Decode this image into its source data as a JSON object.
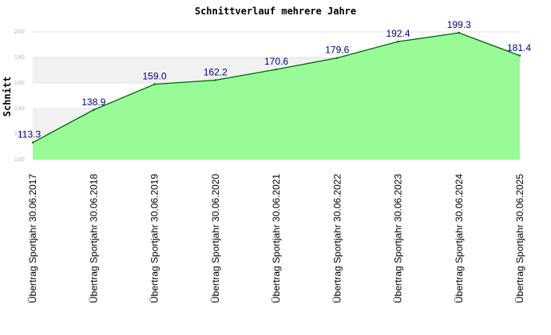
{
  "chart_data": {
    "type": "area",
    "title": "Schnittverlauf mehrere Jahre",
    "xlabel": "",
    "ylabel": "Schnitt",
    "categories": [
      "Übertrag Sportjahr 30.06.2017",
      "Übertrag Sportjahr 30.06.2018",
      "Übertrag Sportjahr 30.06.2019",
      "Übertrag Sportjahr 30.06.2020",
      "Übertrag Sportjahr 30.06.2021",
      "Übertrag Sportjahr 30.06.2022",
      "Übertrag Sportjahr 30.06.2023",
      "Übertrag Sportjahr 30.06.2024",
      "Übertrag Sportjahr 30.06.2025"
    ],
    "values": [
      113.3,
      138.9,
      159.0,
      162.2,
      170.6,
      179.6,
      192.4,
      199.3,
      181.4
    ],
    "value_labels": [
      "113.3",
      "138.9",
      "159.0",
      "162.2",
      "170.6",
      "179.6",
      "192.4",
      "199.3",
      "181.4"
    ],
    "yticks": [
      100,
      120,
      140,
      160,
      180,
      200
    ],
    "ytick_labels": [
      "100",
      "120",
      "140",
      "160",
      "180",
      "200"
    ],
    "ylim": [
      100,
      200
    ],
    "grid": "horizontal bands",
    "colors": {
      "fill": "#98fb98",
      "line": "#006400",
      "band": "#f1f1f1",
      "label": "#000080"
    }
  }
}
